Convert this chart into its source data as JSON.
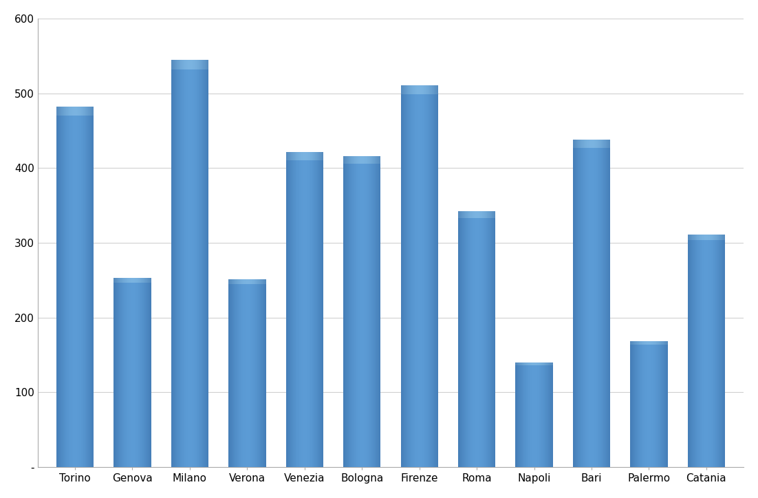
{
  "categories": [
    "Torino",
    "Genova",
    "Milano",
    "Verona",
    "Venezia",
    "Bologna",
    "Firenze",
    "Roma",
    "Napoli",
    "Bari",
    "Palermo",
    "Catania"
  ],
  "values": [
    482,
    253,
    545,
    251,
    421,
    416,
    511,
    342,
    140,
    438,
    168,
    311
  ],
  "bar_color_center": "#5B9BD5",
  "bar_color_edge_left": "#2E6099",
  "bar_color_edge_right": "#2E6099",
  "bar_color_top": "#7AB3E0",
  "background_color": "#FFFFFF",
  "plot_bg_color": "#FFFFFF",
  "grid_color": "#D0D0D0",
  "border_color": "#AAAAAA",
  "ylim": [
    0,
    600
  ],
  "yticks": [
    0,
    100,
    200,
    300,
    400,
    500,
    600
  ],
  "ytick_labels": [
    "-",
    "100",
    "200",
    "300",
    "400",
    "500",
    "600"
  ],
  "tick_fontsize": 11,
  "bar_width": 0.65,
  "gradient_steps": 100
}
